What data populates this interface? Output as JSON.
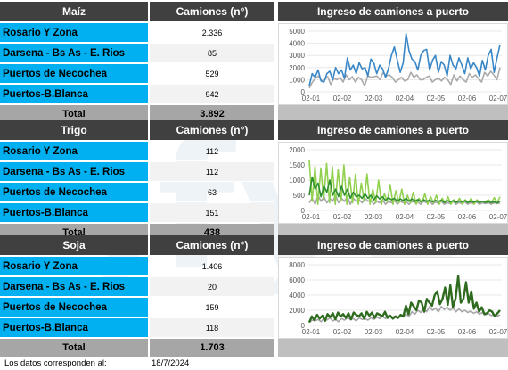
{
  "watermark": ",fyo",
  "footer": {
    "label": "Los datos corresponden al:",
    "date": "18/7/2024"
  },
  "headers": {
    "count": "Camiones (n°)",
    "chart": "Ingreso de camiones a puerto"
  },
  "total_label": "Total",
  "sections": [
    {
      "grain": "Maíz",
      "rows": [
        {
          "name": "Rosario Y Zona",
          "value": "2.336"
        },
        {
          "name": "Darsena - Bs As - E. Rios",
          "value": "85"
        },
        {
          "name": "Puertos de Necochea",
          "value": "529"
        },
        {
          "name": "Puertos-B.Blanca",
          "value": "942"
        }
      ],
      "total": "3.892"
    },
    {
      "grain": "Trigo",
      "rows": [
        {
          "name": "Rosario Y Zona",
          "value": "112"
        },
        {
          "name": "Darsena - Bs As - E. Rios",
          "value": "112"
        },
        {
          "name": "Puertos de Necochea",
          "value": "63"
        },
        {
          "name": "Puertos-B.Blanca",
          "value": "151"
        }
      ],
      "total": "438"
    },
    {
      "grain": "Soja",
      "rows": [
        {
          "name": "Rosario Y Zona",
          "value": "1.406"
        },
        {
          "name": "Darsena - Bs As - E. Rios",
          "value": "20"
        },
        {
          "name": "Puertos de Necochea",
          "value": "159"
        },
        {
          "name": "Puertos-B.Blanca",
          "value": "118"
        }
      ],
      "total": "1.703"
    }
  ],
  "chart_data": [
    {
      "type": "line",
      "title": "Ingreso de camiones a puerto",
      "x_ticks": [
        "02-01",
        "02-02",
        "02-03",
        "02-04",
        "02-05",
        "02-06",
        "02-07"
      ],
      "ylim": [
        0,
        5000
      ],
      "y_ticks": [
        0,
        1000,
        2000,
        3000,
        4000,
        5000
      ],
      "grid": true,
      "series": [
        {
          "color": "#aaaaaa",
          "values": [
            300,
            800,
            1100,
            1300,
            900,
            1000,
            1250,
            600,
            1100,
            1000,
            1200,
            800,
            1400,
            1000,
            1250,
            800,
            1200,
            1000,
            500,
            1300,
            1200,
            1250,
            1300,
            1000,
            1600,
            1300,
            1400,
            1200,
            800,
            1000,
            1200,
            900,
            1000,
            1600,
            1200,
            1400,
            1000,
            1000,
            1200,
            1300,
            800,
            1000,
            1100,
            900,
            1200,
            1000,
            600,
            1400,
            900,
            1300,
            1000,
            800,
            1500,
            1200,
            1400,
            1100,
            800,
            1600,
            1300,
            1700,
            1400,
            1000,
            2000
          ]
        },
        {
          "color": "#3a87c8",
          "values": [
            500,
            1500,
            1200,
            1800,
            900,
            800,
            1500,
            1700,
            1000,
            2000,
            1500,
            1800,
            1100,
            2800,
            1800,
            2200,
            1500,
            2400,
            1900,
            2000,
            1300,
            2700,
            2400,
            1500,
            2200,
            1900,
            1200,
            1900,
            3000,
            3700,
            2600,
            1600,
            2400,
            4800,
            3400,
            2700,
            2500,
            1800,
            3000,
            3400,
            3500,
            1800,
            2600,
            3000,
            1600,
            2500,
            2200,
            1300,
            3000,
            2200,
            1900,
            2800,
            2200,
            1500,
            2800,
            1900,
            2400,
            2000,
            1300,
            2600,
            1800,
            3000,
            3500,
            1600,
            2800,
            3900
          ]
        }
      ]
    },
    {
      "type": "line",
      "title": "Ingreso de camiones a puerto",
      "x_ticks": [
        "02-01",
        "02-02",
        "02-03",
        "02-04",
        "02-05",
        "02-06",
        "02-07"
      ],
      "ylim": [
        0,
        2000
      ],
      "y_ticks": [
        0,
        500,
        1000,
        1500,
        2000
      ],
      "grid": true,
      "series": [
        {
          "color": "#a6a6a6",
          "values": [
            250,
            400,
            200,
            500,
            300,
            450,
            250,
            400,
            300,
            500,
            250,
            400,
            300,
            450,
            200,
            400,
            300,
            350,
            250,
            400,
            300,
            350,
            200,
            300,
            250,
            350,
            200,
            300,
            250,
            350,
            200,
            300,
            250,
            300,
            200,
            300,
            250,
            280,
            200,
            300,
            250,
            300,
            200,
            280,
            220,
            300,
            200,
            260,
            220,
            300,
            200,
            260,
            220,
            280,
            200,
            260,
            220,
            280,
            200,
            250,
            220,
            260,
            200,
            250,
            220,
            240
          ]
        },
        {
          "color": "#92d050",
          "values": [
            1650,
            300,
            1450,
            200,
            1400,
            350,
            1550,
            250,
            1450,
            200,
            1350,
            300,
            1500,
            200,
            1100,
            250,
            1200,
            200,
            900,
            300,
            1200,
            200,
            700,
            250,
            1000,
            200,
            550,
            300,
            850,
            200,
            650,
            250,
            700,
            200,
            500,
            250,
            600,
            200,
            400,
            250,
            550,
            200,
            450,
            250,
            500,
            200,
            400,
            250,
            450,
            200,
            350,
            250,
            400,
            200,
            350,
            250,
            400,
            200,
            350,
            250,
            300,
            300,
            350,
            250,
            420,
            250,
            450
          ]
        },
        {
          "color": "#2f8f2f",
          "values": [
            500,
            1100,
            700,
            900,
            450,
            800,
            600,
            1000,
            500,
            700,
            450,
            800,
            500,
            700,
            400,
            600,
            450,
            500,
            400,
            550,
            400,
            500,
            350,
            480,
            380,
            450,
            330,
            420,
            350,
            400,
            300,
            380,
            320,
            400,
            300,
            380,
            300,
            360,
            280,
            350,
            300,
            340,
            280,
            330,
            290,
            340,
            260,
            330,
            280,
            320,
            260,
            310,
            280,
            320,
            260,
            300,
            270,
            310,
            260,
            300,
            260,
            290,
            260,
            280,
            250,
            300
          ]
        }
      ]
    },
    {
      "type": "line",
      "title": "Ingreso de camiones a puerto",
      "x_ticks": [
        "02-01",
        "02-02",
        "02-03",
        "02-04",
        "02-05",
        "02-06",
        "02-07"
      ],
      "ylim": [
        0,
        8000
      ],
      "y_ticks": [
        0,
        2000,
        4000,
        6000,
        8000
      ],
      "grid": true,
      "series": [
        {
          "color": "#a6a6a6",
          "values": [
            400,
            700,
            600,
            800,
            500,
            900,
            700,
            1000,
            600,
            800,
            500,
            900,
            700,
            1000,
            800,
            900,
            600,
            1000,
            800,
            900,
            700,
            1000,
            800,
            1100,
            900,
            1200,
            900,
            1300,
            1000,
            1200,
            900,
            1400,
            1100,
            1500,
            1200,
            1800,
            1500,
            2000,
            1700,
            2200,
            1800,
            2500,
            2000,
            2300,
            1800,
            2500,
            2100,
            2400,
            2000,
            2300,
            1800,
            2200,
            1800,
            2000,
            1700,
            1900,
            1600,
            1800,
            1500,
            1700,
            1400,
            1600,
            1300,
            1500,
            1200,
            1400
          ]
        },
        {
          "color": "#2e6b1e",
          "values": [
            400,
            1200,
            700,
            1400,
            900,
            1300,
            600,
            1500,
            1100,
            1600,
            800,
            1700,
            1200,
            1500,
            1000,
            1600,
            800,
            1700,
            1400,
            1200,
            1600,
            900,
            1800,
            1300,
            1700,
            1000,
            1600,
            1400,
            1200,
            1800,
            1000,
            1300,
            900,
            1200,
            1000,
            1400,
            1200,
            2600,
            1500,
            3000,
            2500,
            2000,
            3300,
            3000,
            1800,
            3500,
            3000,
            2600,
            4000,
            4500,
            2800,
            3500,
            5000,
            2700,
            5300,
            2400,
            3600,
            6500,
            3000,
            3500,
            5700,
            3000,
            4500,
            2200,
            3000,
            1800,
            2400,
            1500,
            1600,
            2000,
            1800,
            1200,
            1600,
            2000
          ]
        }
      ]
    }
  ]
}
